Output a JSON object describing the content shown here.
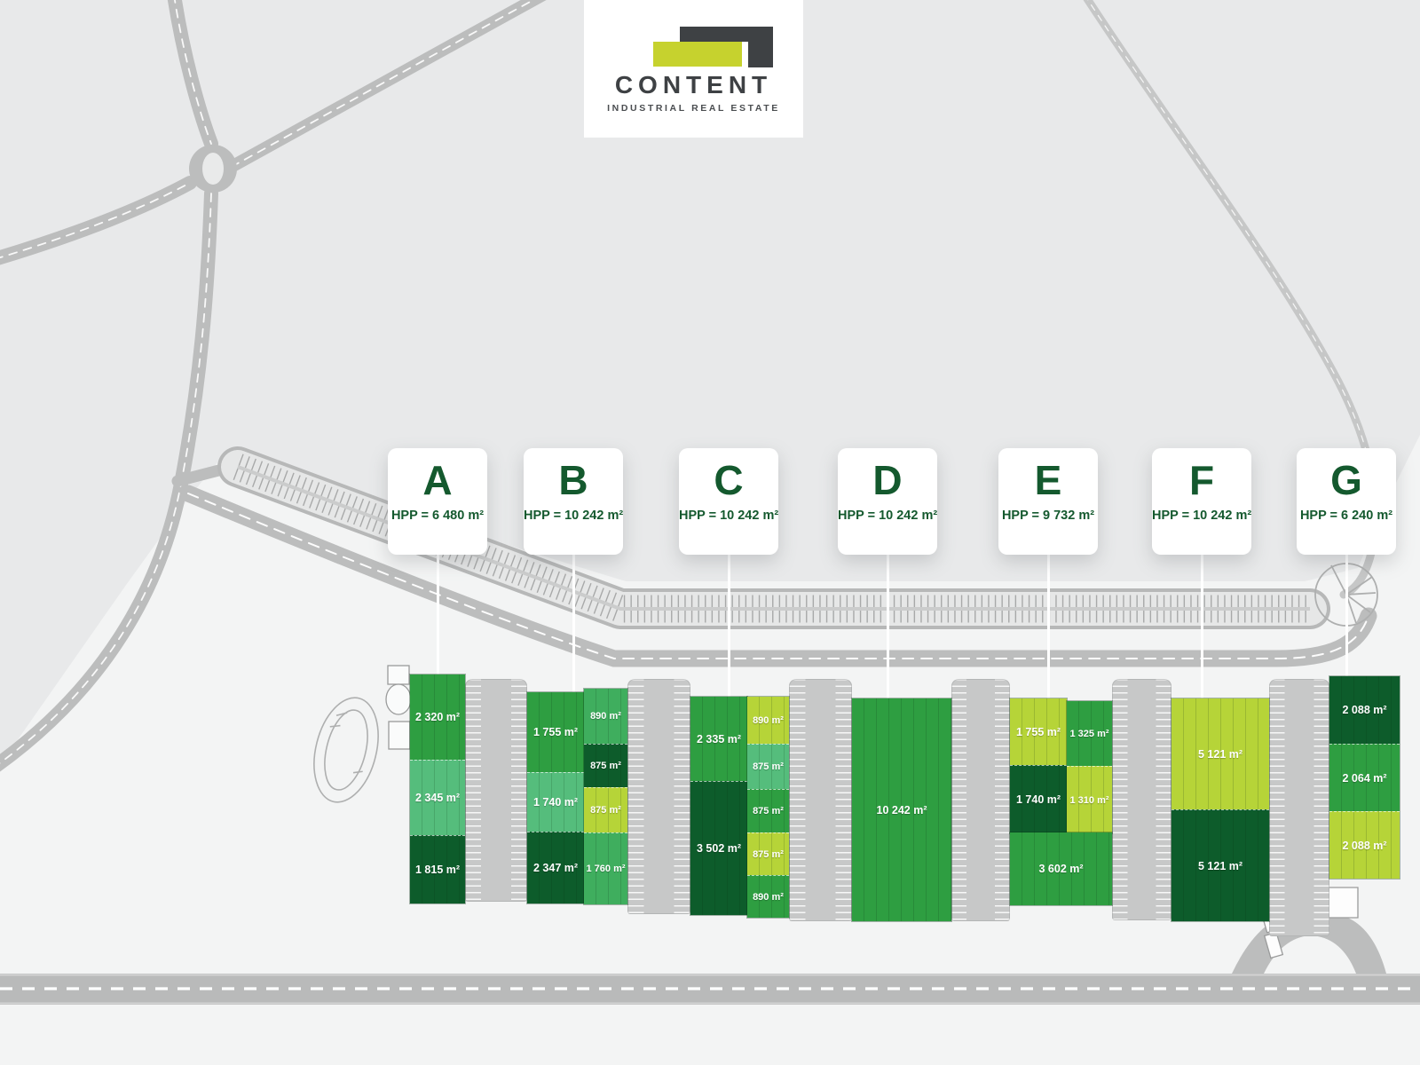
{
  "logo": {
    "company": "CONTENT",
    "tagline": "INDUSTRIAL REAL ESTATE"
  },
  "colors": {
    "accent_dark_green": "#0d5c2b",
    "accent_medium_green": "#2e9e41",
    "accent_mlight_green": "#3fae5e",
    "accent_light_green": "#55bd7c",
    "accent_lime": "#b6d438",
    "logo_lime": "#c6d22e",
    "logo_dark": "#3e4144",
    "card_text_green": "#14592e",
    "road_gray": "#bcbdbd",
    "site_gray": "#f3f4f4"
  },
  "buildings": [
    {
      "id": "A",
      "hpp": "HPP = 6 480 m²",
      "units": [
        {
          "area": "2 320 m²",
          "tone": "medium"
        },
        {
          "area": "2 345 m²",
          "tone": "light"
        },
        {
          "area": "1 815 m²",
          "tone": "dark"
        }
      ]
    },
    {
      "id": "B",
      "hpp": "HPP = 10 242 m²",
      "units": [
        {
          "area": "1 755 m²",
          "tone": "medium"
        },
        {
          "area": "1 740 m²",
          "tone": "light"
        },
        {
          "area": "2 347 m²",
          "tone": "dark"
        },
        {
          "area": "890 m²",
          "tone": "mlight"
        },
        {
          "area": "875 m²",
          "tone": "dark"
        },
        {
          "area": "875 m²",
          "tone": "lime"
        },
        {
          "area": "1 760 m²",
          "tone": "mlight"
        }
      ]
    },
    {
      "id": "C",
      "hpp": "HPP = 10 242 m²",
      "units": [
        {
          "area": "2 335 m²",
          "tone": "medium"
        },
        {
          "area": "3 502 m²",
          "tone": "dark"
        },
        {
          "area": "890 m²",
          "tone": "lime"
        },
        {
          "area": "875 m²",
          "tone": "light"
        },
        {
          "area": "875 m²",
          "tone": "medium"
        },
        {
          "area": "875 m²",
          "tone": "lime"
        },
        {
          "area": "890 m²",
          "tone": "medium"
        }
      ]
    },
    {
      "id": "D",
      "hpp": "HPP = 10 242 m²",
      "units": [
        {
          "area": "10 242 m²",
          "tone": "medium"
        }
      ]
    },
    {
      "id": "E",
      "hpp": "HPP = 9 732 m²",
      "units": [
        {
          "area": "1 755 m²",
          "tone": "lime"
        },
        {
          "area": "1 740 m²",
          "tone": "dark"
        },
        {
          "area": "1 325 m²",
          "tone": "medium"
        },
        {
          "area": "1 310 m²",
          "tone": "lime"
        },
        {
          "area": "3 602 m²",
          "tone": "medium"
        }
      ]
    },
    {
      "id": "F",
      "hpp": "HPP = 10 242 m²",
      "units": [
        {
          "area": "5 121 m²",
          "tone": "lime"
        },
        {
          "area": "5 121 m²",
          "tone": "dark"
        }
      ]
    },
    {
      "id": "G",
      "hpp": "HPP = 6 240 m²",
      "units": [
        {
          "area": "2 088 m²",
          "tone": "dark"
        },
        {
          "area": "2 064 m²",
          "tone": "medium"
        },
        {
          "area": "2 088 m²",
          "tone": "lime"
        }
      ]
    }
  ]
}
